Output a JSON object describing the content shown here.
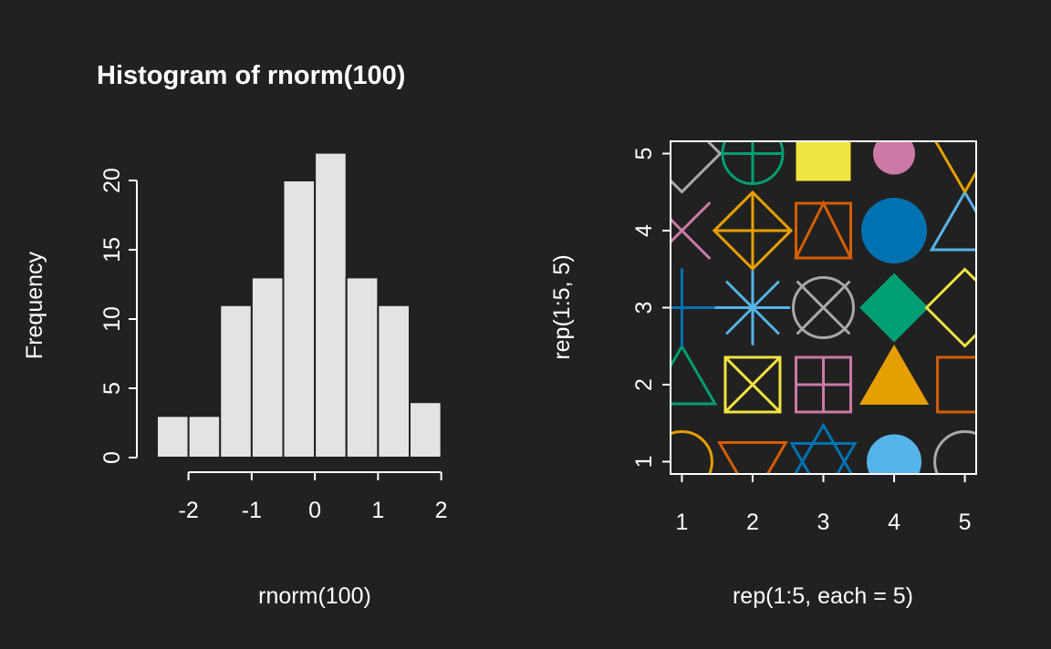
{
  "figure": {
    "background": "#212121",
    "foreground": "#ffffff"
  },
  "chart_data": [
    {
      "type": "bar",
      "subtype": "histogram",
      "title": "Histogram of rnorm(100)",
      "xlabel": "rnorm(100)",
      "ylabel": "Frequency",
      "breaks": [
        -2.5,
        -2,
        -1.5,
        -1,
        -0.5,
        0,
        0.5,
        1,
        1.5,
        2
      ],
      "counts": [
        3,
        3,
        11,
        13,
        20,
        22,
        13,
        11,
        4
      ],
      "x_ticks": [
        -2,
        -1,
        0,
        1,
        2
      ],
      "y_ticks": [
        0,
        5,
        10,
        15,
        20
      ],
      "xlim": [
        -2.5,
        2
      ],
      "ylim": [
        0,
        22
      ],
      "grid": false,
      "legend": "none",
      "bar_fill": "#E3E3E3",
      "bar_stroke": "#212121"
    },
    {
      "type": "scatter",
      "subtype": "pch-symbol-demo",
      "xlabel": "rep(1:5, each = 5)",
      "ylabel": "rep(1:5, 5)",
      "x_ticks": [
        1,
        2,
        3,
        4,
        5
      ],
      "y_ticks": [
        1,
        2,
        3,
        4,
        5
      ],
      "xlim": [
        0.84,
        5.16
      ],
      "ylim": [
        0.84,
        5.16
      ],
      "grid": false,
      "legend": "none",
      "palette": [
        "#E69F00",
        "#009E73",
        "#0072B2",
        "#CC79A7",
        "#A9A9A9",
        "#D55E00",
        "#F0E442",
        "#56B4E9"
      ],
      "points": [
        {
          "x": 1,
          "y": 1,
          "pch": 1,
          "color": "#E69F00"
        },
        {
          "x": 1,
          "y": 2,
          "pch": 2,
          "color": "#009E73"
        },
        {
          "x": 1,
          "y": 3,
          "pch": 3,
          "color": "#0072B2"
        },
        {
          "x": 1,
          "y": 4,
          "pch": 4,
          "color": "#CC79A7"
        },
        {
          "x": 1,
          "y": 5,
          "pch": 5,
          "color": "#A9A9A9"
        },
        {
          "x": 2,
          "y": 1,
          "pch": 6,
          "color": "#D55E00"
        },
        {
          "x": 2,
          "y": 2,
          "pch": 7,
          "color": "#F0E442"
        },
        {
          "x": 2,
          "y": 3,
          "pch": 8,
          "color": "#56B4E9"
        },
        {
          "x": 2,
          "y": 4,
          "pch": 9,
          "color": "#E69F00"
        },
        {
          "x": 2,
          "y": 5,
          "pch": 10,
          "color": "#009E73"
        },
        {
          "x": 3,
          "y": 1,
          "pch": 11,
          "color": "#0072B2"
        },
        {
          "x": 3,
          "y": 2,
          "pch": 12,
          "color": "#CC79A7"
        },
        {
          "x": 3,
          "y": 3,
          "pch": 13,
          "color": "#A9A9A9"
        },
        {
          "x": 3,
          "y": 4,
          "pch": 14,
          "color": "#D55E00"
        },
        {
          "x": 3,
          "y": 5,
          "pch": 15,
          "color": "#F0E442"
        },
        {
          "x": 4,
          "y": 1,
          "pch": 16,
          "color": "#56B4E9"
        },
        {
          "x": 4,
          "y": 2,
          "pch": 17,
          "color": "#E69F00"
        },
        {
          "x": 4,
          "y": 3,
          "pch": 18,
          "color": "#009E73"
        },
        {
          "x": 4,
          "y": 4,
          "pch": 19,
          "color": "#0072B2"
        },
        {
          "x": 4,
          "y": 5,
          "pch": 20,
          "color": "#CC79A7"
        },
        {
          "x": 5,
          "y": 1,
          "pch": 21,
          "color": "#A9A9A9"
        },
        {
          "x": 5,
          "y": 2,
          "pch": 22,
          "color": "#D55E00"
        },
        {
          "x": 5,
          "y": 3,
          "pch": 23,
          "color": "#F0E442"
        },
        {
          "x": 5,
          "y": 4,
          "pch": 24,
          "color": "#56B4E9"
        },
        {
          "x": 5,
          "y": 5,
          "pch": 25,
          "color": "#E69F00"
        }
      ]
    }
  ]
}
